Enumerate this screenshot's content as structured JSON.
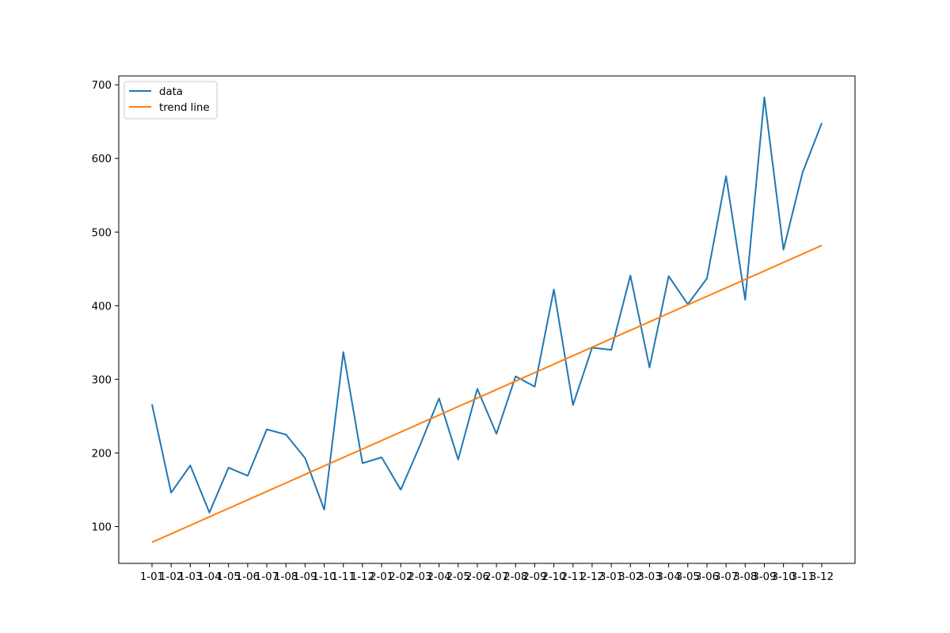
{
  "chart_data": {
    "type": "line",
    "categories": [
      "1-01",
      "1-02",
      "1-03",
      "1-04",
      "1-05",
      "1-06",
      "1-07",
      "1-08",
      "1-09",
      "1-10",
      "1-11",
      "1-12",
      "2-01",
      "2-02",
      "2-03",
      "2-04",
      "2-05",
      "2-06",
      "2-07",
      "2-08",
      "2-09",
      "2-10",
      "2-11",
      "2-12",
      "3-01",
      "3-02",
      "3-03",
      "3-04",
      "3-05",
      "3-06",
      "3-07",
      "3-08",
      "3-09",
      "3-10",
      "3-11",
      "3-12"
    ],
    "series": [
      {
        "name": "data",
        "color": "#1f77b4",
        "values": [
          266,
          146,
          183,
          119,
          180,
          169,
          232,
          225,
          193,
          123,
          337,
          186,
          194,
          150,
          210,
          274,
          191,
          287,
          226,
          304,
          290,
          422,
          265,
          343,
          340,
          441,
          316,
          440,
          402,
          437,
          576,
          408,
          683,
          476,
          581,
          648
        ]
      },
      {
        "name": "trend line",
        "color": "#ff7f0e",
        "values": [
          78.6,
          90.1,
          101.6,
          113.2,
          124.7,
          136.2,
          147.7,
          159.2,
          170.8,
          182.3,
          193.8,
          205.3,
          216.8,
          228.4,
          239.9,
          251.4,
          262.9,
          274.4,
          286.0,
          297.5,
          309.0,
          320.5,
          332.0,
          343.6,
          355.1,
          366.6,
          378.1,
          389.6,
          401.2,
          412.7,
          424.2,
          435.7,
          447.2,
          458.8,
          470.3,
          481.8
        ]
      }
    ],
    "yticks": [
      100,
      200,
      300,
      400,
      500,
      600,
      700
    ],
    "ylim": [
      50,
      712
    ],
    "title": "",
    "xlabel": "",
    "ylabel": "",
    "grid": false,
    "legend_position": "top-left"
  }
}
